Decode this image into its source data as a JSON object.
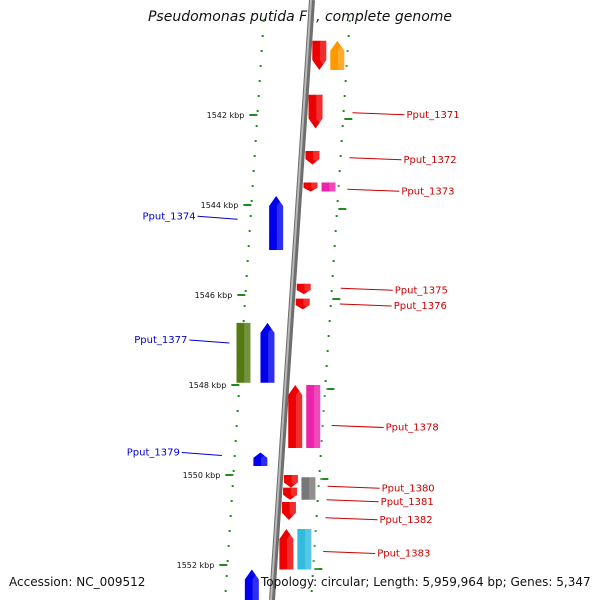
{
  "title": "Pseudomonas putida F1, complete genome",
  "footer": {
    "accession": "Accession: NC_009512",
    "stats": "Topology: circular; Length: 5,959,964 bp; Genes: 5,347"
  },
  "colors": {
    "backbone": "#8f8f8f",
    "tick": "#1f8a1f",
    "forward_label": "#cc0000",
    "reverse_label": "#0000cc"
  },
  "scale_labels": [
    {
      "kbp": 1542,
      "label": "1542 kbp"
    },
    {
      "kbp": 1544,
      "label": "1544 kbp"
    },
    {
      "kbp": 1546,
      "label": "1546 kbp"
    },
    {
      "kbp": 1548,
      "label": "1548 kbp"
    },
    {
      "kbp": 1550,
      "label": "1550 kbp"
    },
    {
      "kbp": 1552,
      "label": "1552 kbp"
    }
  ],
  "labels": [
    {
      "name": "Pput_1371",
      "strand": "+",
      "kbp": 1541.95
    },
    {
      "name": "Pput_1372",
      "strand": "+",
      "kbp": 1542.95
    },
    {
      "name": "Pput_1373",
      "strand": "+",
      "kbp": 1543.65
    },
    {
      "name": "Pput_1374",
      "strand": "-",
      "kbp": 1544.25
    },
    {
      "name": "Pput_1375",
      "strand": "+",
      "kbp": 1545.85
    },
    {
      "name": "Pput_1376",
      "strand": "+",
      "kbp": 1546.2
    },
    {
      "name": "Pput_1377",
      "strand": "-",
      "kbp": 1547.0
    },
    {
      "name": "Pput_1378",
      "strand": "+",
      "kbp": 1548.9
    },
    {
      "name": "Pput_1379",
      "strand": "-",
      "kbp": 1549.5
    },
    {
      "name": "Pput_1380",
      "strand": "+",
      "kbp": 1550.25
    },
    {
      "name": "Pput_1381",
      "strand": "+",
      "kbp": 1550.55
    },
    {
      "name": "Pput_1382",
      "strand": "+",
      "kbp": 1550.95
    },
    {
      "name": "Pput_1383",
      "strand": "+",
      "kbp": 1551.7
    }
  ],
  "genes": [
    {
      "id": "g-top-red",
      "strand": "+",
      "lane": 1,
      "start": 1540.35,
      "end": 1541.0,
      "color": "#ee0000",
      "dir": "down"
    },
    {
      "id": "g-top-orange",
      "strand": "+",
      "lane": 2,
      "start": 1540.35,
      "end": 1541.0,
      "color": "#ff9900",
      "dir": "up"
    },
    {
      "id": "Pput_1371",
      "strand": "+",
      "lane": 1,
      "start": 1541.55,
      "end": 1542.3,
      "color": "#ee0000",
      "dir": "down"
    },
    {
      "id": "Pput_1372",
      "strand": "+",
      "lane": 1,
      "start": 1542.8,
      "end": 1543.1,
      "color": "#ee0000",
      "dir": "down"
    },
    {
      "id": "Pput_1373a",
      "strand": "+",
      "lane": 1,
      "start": 1543.5,
      "end": 1543.7,
      "color": "#ee0000",
      "dir": "down"
    },
    {
      "id": "Pput_1373",
      "strand": "+",
      "lane": 2,
      "start": 1543.5,
      "end": 1543.7,
      "color": "#ee22aa",
      "dir": "none"
    },
    {
      "id": "Pput_1374",
      "strand": "-",
      "lane": 1,
      "start": 1543.8,
      "end": 1545.0,
      "color": "#0000ee",
      "dir": "up"
    },
    {
      "id": "Pput_1375",
      "strand": "+",
      "lane": 1,
      "start": 1545.75,
      "end": 1545.98,
      "color": "#ee0000",
      "dir": "down"
    },
    {
      "id": "Pput_1376",
      "strand": "+",
      "lane": 1,
      "start": 1546.08,
      "end": 1546.32,
      "color": "#ee0000",
      "dir": "down"
    },
    {
      "id": "Pput_1377b",
      "strand": "-",
      "lane": 2,
      "start": 1546.62,
      "end": 1547.95,
      "color": "#557a11",
      "dir": "none"
    },
    {
      "id": "Pput_1377",
      "strand": "-",
      "lane": 1,
      "start": 1546.62,
      "end": 1547.95,
      "color": "#0000ee",
      "dir": "up"
    },
    {
      "id": "Pput_1378a",
      "strand": "+",
      "lane": 1,
      "start": 1548.0,
      "end": 1549.4,
      "color": "#ee0000",
      "dir": "up"
    },
    {
      "id": "Pput_1378",
      "strand": "+",
      "lane": 2,
      "start": 1548.0,
      "end": 1549.4,
      "color": "#ee22aa",
      "dir": "none"
    },
    {
      "id": "Pput_1379",
      "strand": "-",
      "lane": 1,
      "start": 1549.5,
      "end": 1549.8,
      "color": "#0000ee",
      "dir": "up"
    },
    {
      "id": "Pput_1380",
      "strand": "+",
      "lane": 1,
      "start": 1550.0,
      "end": 1550.28,
      "color": "#ee0000",
      "dir": "down"
    },
    {
      "id": "Pput_1380b",
      "strand": "+",
      "lane": 1,
      "start": 1550.28,
      "end": 1550.55,
      "color": "#ee0000",
      "dir": "down"
    },
    {
      "id": "Pput_1381",
      "strand": "+",
      "lane": 2,
      "start": 1550.05,
      "end": 1550.55,
      "color": "#777777",
      "dir": "none"
    },
    {
      "id": "Pput_1382",
      "strand": "+",
      "lane": 1,
      "start": 1550.6,
      "end": 1551.0,
      "color": "#ee0000",
      "dir": "down"
    },
    {
      "id": "Pput_1383a",
      "strand": "+",
      "lane": 1,
      "start": 1551.2,
      "end": 1552.1,
      "color": "#ee0000",
      "dir": "up"
    },
    {
      "id": "Pput_1383",
      "strand": "+",
      "lane": 2,
      "start": 1551.2,
      "end": 1552.1,
      "color": "#33bbdd",
      "dir": "none"
    },
    {
      "id": "g-bottom-blue",
      "strand": "-",
      "lane": 1,
      "start": 1552.1,
      "end": 1552.9,
      "color": "#0000ee",
      "dir": "up"
    }
  ]
}
